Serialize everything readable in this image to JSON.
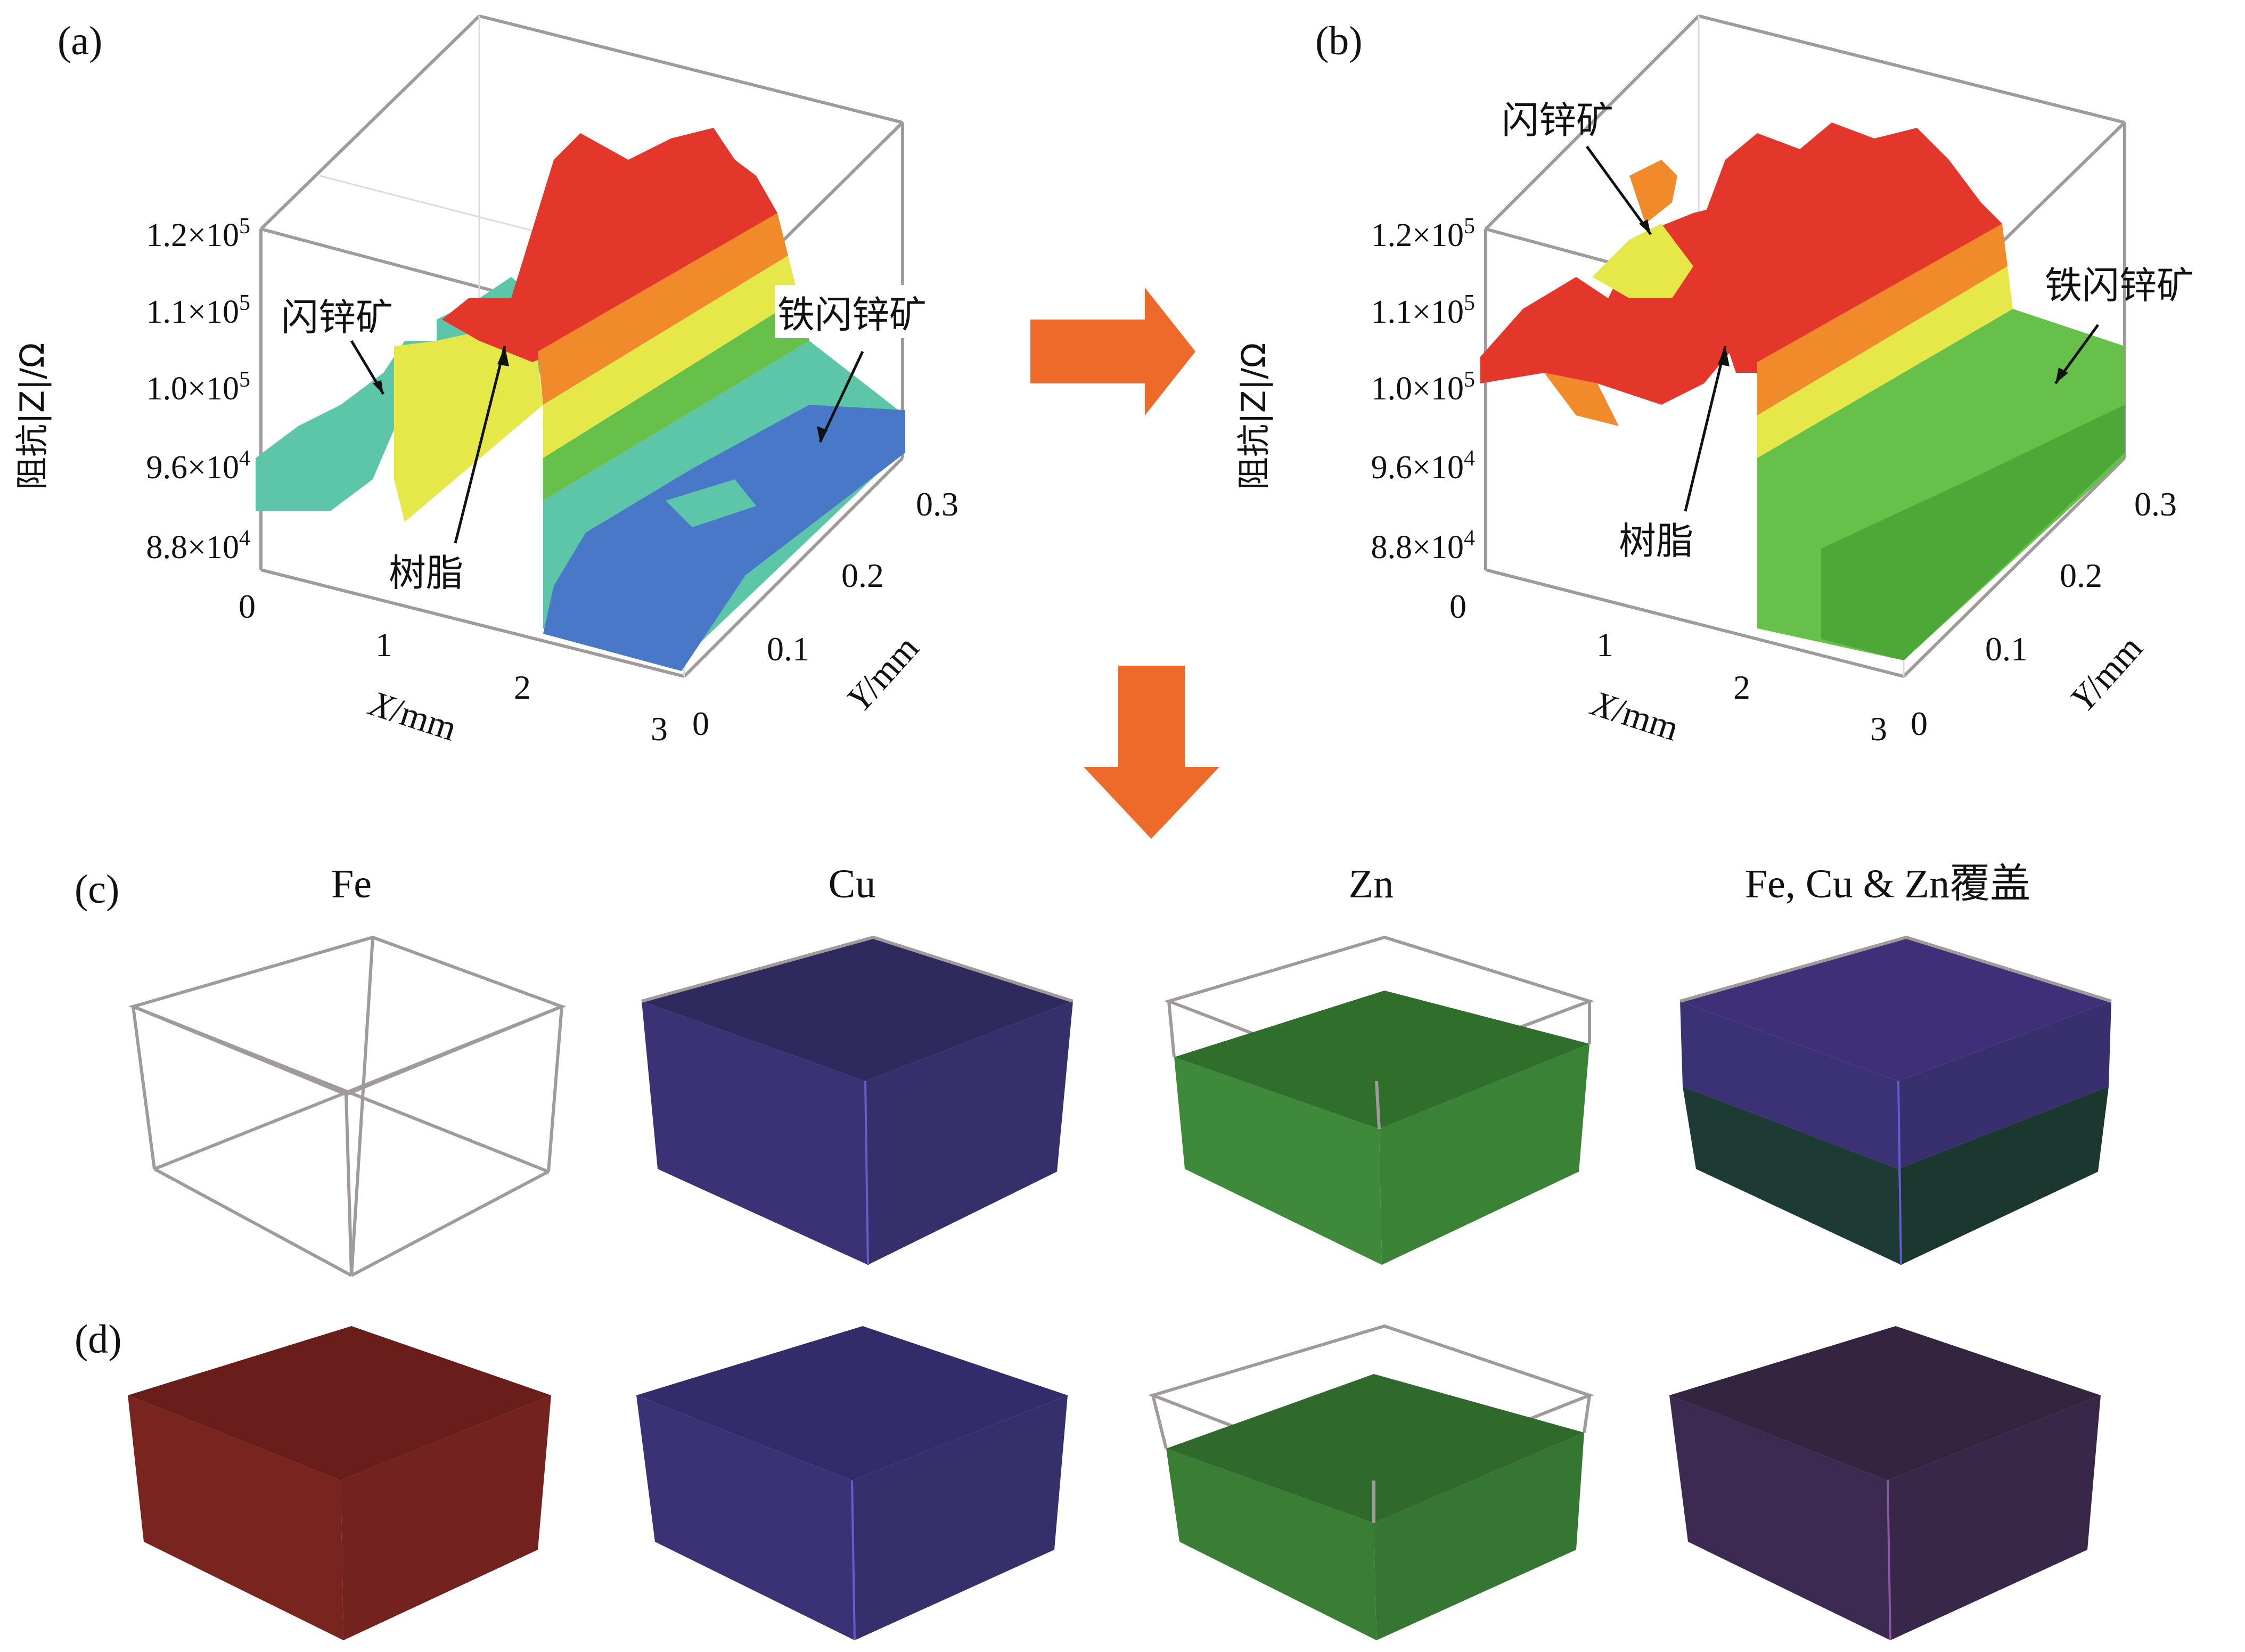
{
  "panels": {
    "a": {
      "label": "(a)",
      "z_axis": {
        "title": "阻抗|Z|/Ω",
        "ticks": [
          {
            "m": "1.2×10",
            "e": "5"
          },
          {
            "m": "1.1×10",
            "e": "5"
          },
          {
            "m": "1.0×10",
            "e": "5"
          },
          {
            "m": "9.6×10",
            "e": "4"
          },
          {
            "m": "8.8×10",
            "e": "4"
          }
        ]
      },
      "x_axis": {
        "ticks": [
          "0",
          "1",
          "2",
          "3"
        ],
        "title_var": "X",
        "title_unit": "/mm"
      },
      "y_axis": {
        "ticks": [
          "0",
          "0.1",
          "0.2",
          "0.3"
        ],
        "title_var": "Y",
        "title_unit": "/mm"
      },
      "annotations": {
        "sphalerite": "闪锌矿",
        "resin": "树脂",
        "marmatite": "铁闪锌矿"
      }
    },
    "b": {
      "label": "(b)",
      "z_axis": {
        "title": "阻抗|Z|/Ω",
        "ticks": [
          {
            "m": "1.2×10",
            "e": "5"
          },
          {
            "m": "1.1×10",
            "e": "5"
          },
          {
            "m": "1.0×10",
            "e": "5"
          },
          {
            "m": "9.6×10",
            "e": "4"
          },
          {
            "m": "8.8×10",
            "e": "4"
          }
        ]
      },
      "x_axis": {
        "ticks": [
          "0",
          "1",
          "2",
          "3"
        ],
        "title_var": "X",
        "title_unit": "/mm"
      },
      "y_axis": {
        "ticks": [
          "0",
          "0.1",
          "0.2",
          "0.3"
        ],
        "title_var": "Y",
        "title_unit": "/mm"
      },
      "annotations": {
        "sphalerite": "闪锌矿",
        "resin": "树脂",
        "marmatite": "铁闪锌矿"
      }
    },
    "c": {
      "label": "(c)",
      "column_titles": [
        "Fe",
        "Cu",
        "Zn",
        "Fe, Cu & Zn覆盖"
      ]
    },
    "d": {
      "label": "(d)"
    }
  },
  "colors": {
    "arrow": "#ee6a2b",
    "fe_red": "#7a2420",
    "cu_blue": "#3a3275",
    "zn_green": "#3e8a3a",
    "overlay_purple": "#3c2a52",
    "surface_red": "#e4372b",
    "surface_orange": "#f08a2a",
    "surface_yellow": "#e6e84a",
    "surface_green": "#66c04a",
    "surface_cyan": "#5dc6a8",
    "surface_blue": "#4a78c8"
  }
}
